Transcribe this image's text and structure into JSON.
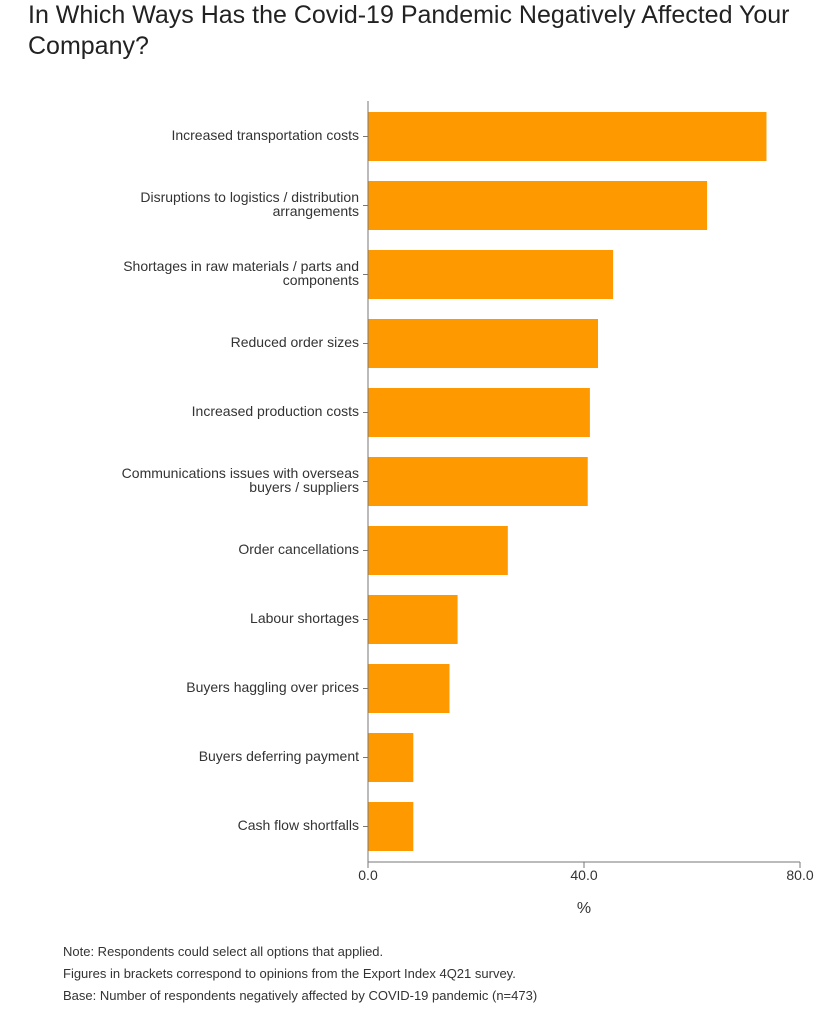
{
  "title": "In Which Ways Has the Covid-19 Pandemic Negatively Affected Your Company?",
  "chart_data": {
    "type": "bar",
    "orientation": "horizontal",
    "categories": [
      [
        "Increased transportation costs"
      ],
      [
        "Disruptions to logistics / distribution",
        "arrangements"
      ],
      [
        "Shortages in raw materials / parts and",
        "components"
      ],
      [
        "Reduced order sizes"
      ],
      [
        "Increased production costs"
      ],
      [
        "Communications issues with overseas",
        "buyers / suppliers"
      ],
      [
        "Order cancellations"
      ],
      [
        "Labour shortages"
      ],
      [
        "Buyers haggling over prices"
      ],
      [
        "Buyers deferring payment"
      ],
      [
        "Cash flow shortfalls"
      ]
    ],
    "values": [
      73.7,
      62.7,
      45.3,
      42.5,
      41.0,
      40.6,
      25.8,
      16.5,
      15.0,
      8.3,
      8.3
    ],
    "xlim": [
      0,
      80
    ],
    "xticks": [
      "0.0",
      "40.0",
      "80.0"
    ],
    "xlabel": "%",
    "bar_color": "#FF9900",
    "axis_color": "#777777",
    "grid": false
  },
  "notes": [
    "Note: Respondents could select all options that applied.",
    "Figures in brackets correspond to opinions from the Export Index 4Q21 survey.",
    "Base: Number of respondents negatively affected by COVID-19 pandemic (n=473)"
  ]
}
